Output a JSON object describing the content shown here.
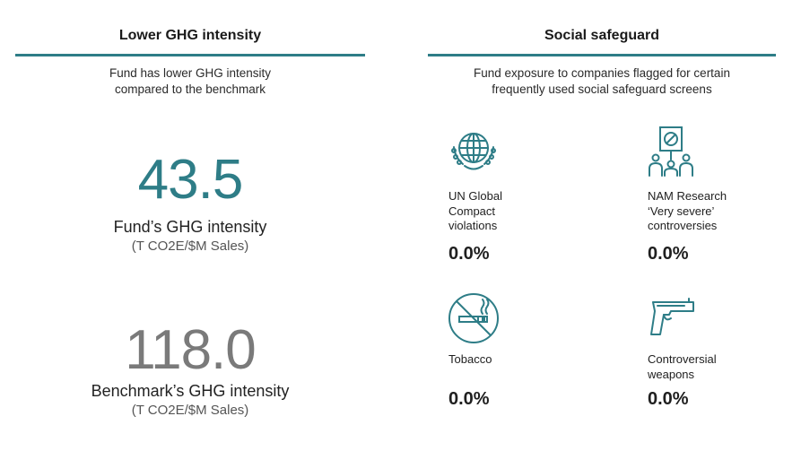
{
  "left_panel": {
    "title": "Lower GHG intensity",
    "subtitle_line1": "Fund has lower GHG intensity",
    "subtitle_line2": "compared to  the benchmark",
    "fund_value": "43.5",
    "fund_label": "Fund’s GHG intensity",
    "fund_unit": "(T CO2E/$M Sales)",
    "benchmark_value": "118.0",
    "benchmark_label": "Benchmark’s GHG intensity",
    "benchmark_unit": "(T CO2E/$M Sales)"
  },
  "right_panel": {
    "title": "Social safeguard",
    "subtitle_line1": "Fund exposure to companies flagged for certain",
    "subtitle_line2": "frequently used social safeguard screens",
    "items": [
      {
        "icon": "globe-wreath-icon",
        "label_lines": [
          "UN Global",
          "Compact",
          "violations"
        ],
        "value": "0.0%"
      },
      {
        "icon": "protest-sign-icon",
        "label_lines": [
          "NAM Research",
          "‘Very severe’",
          "controversies"
        ],
        "value": "0.0%"
      },
      {
        "icon": "no-smoking-icon",
        "label_lines": [
          "Tobacco"
        ],
        "value": "0.0%"
      },
      {
        "icon": "handgun-icon",
        "label_lines": [
          "Controversial",
          "weapons"
        ],
        "value": "0.0%"
      }
    ]
  },
  "colors": {
    "accent": "#2e7d87",
    "benchmark_grey": "#7a7a7a"
  }
}
